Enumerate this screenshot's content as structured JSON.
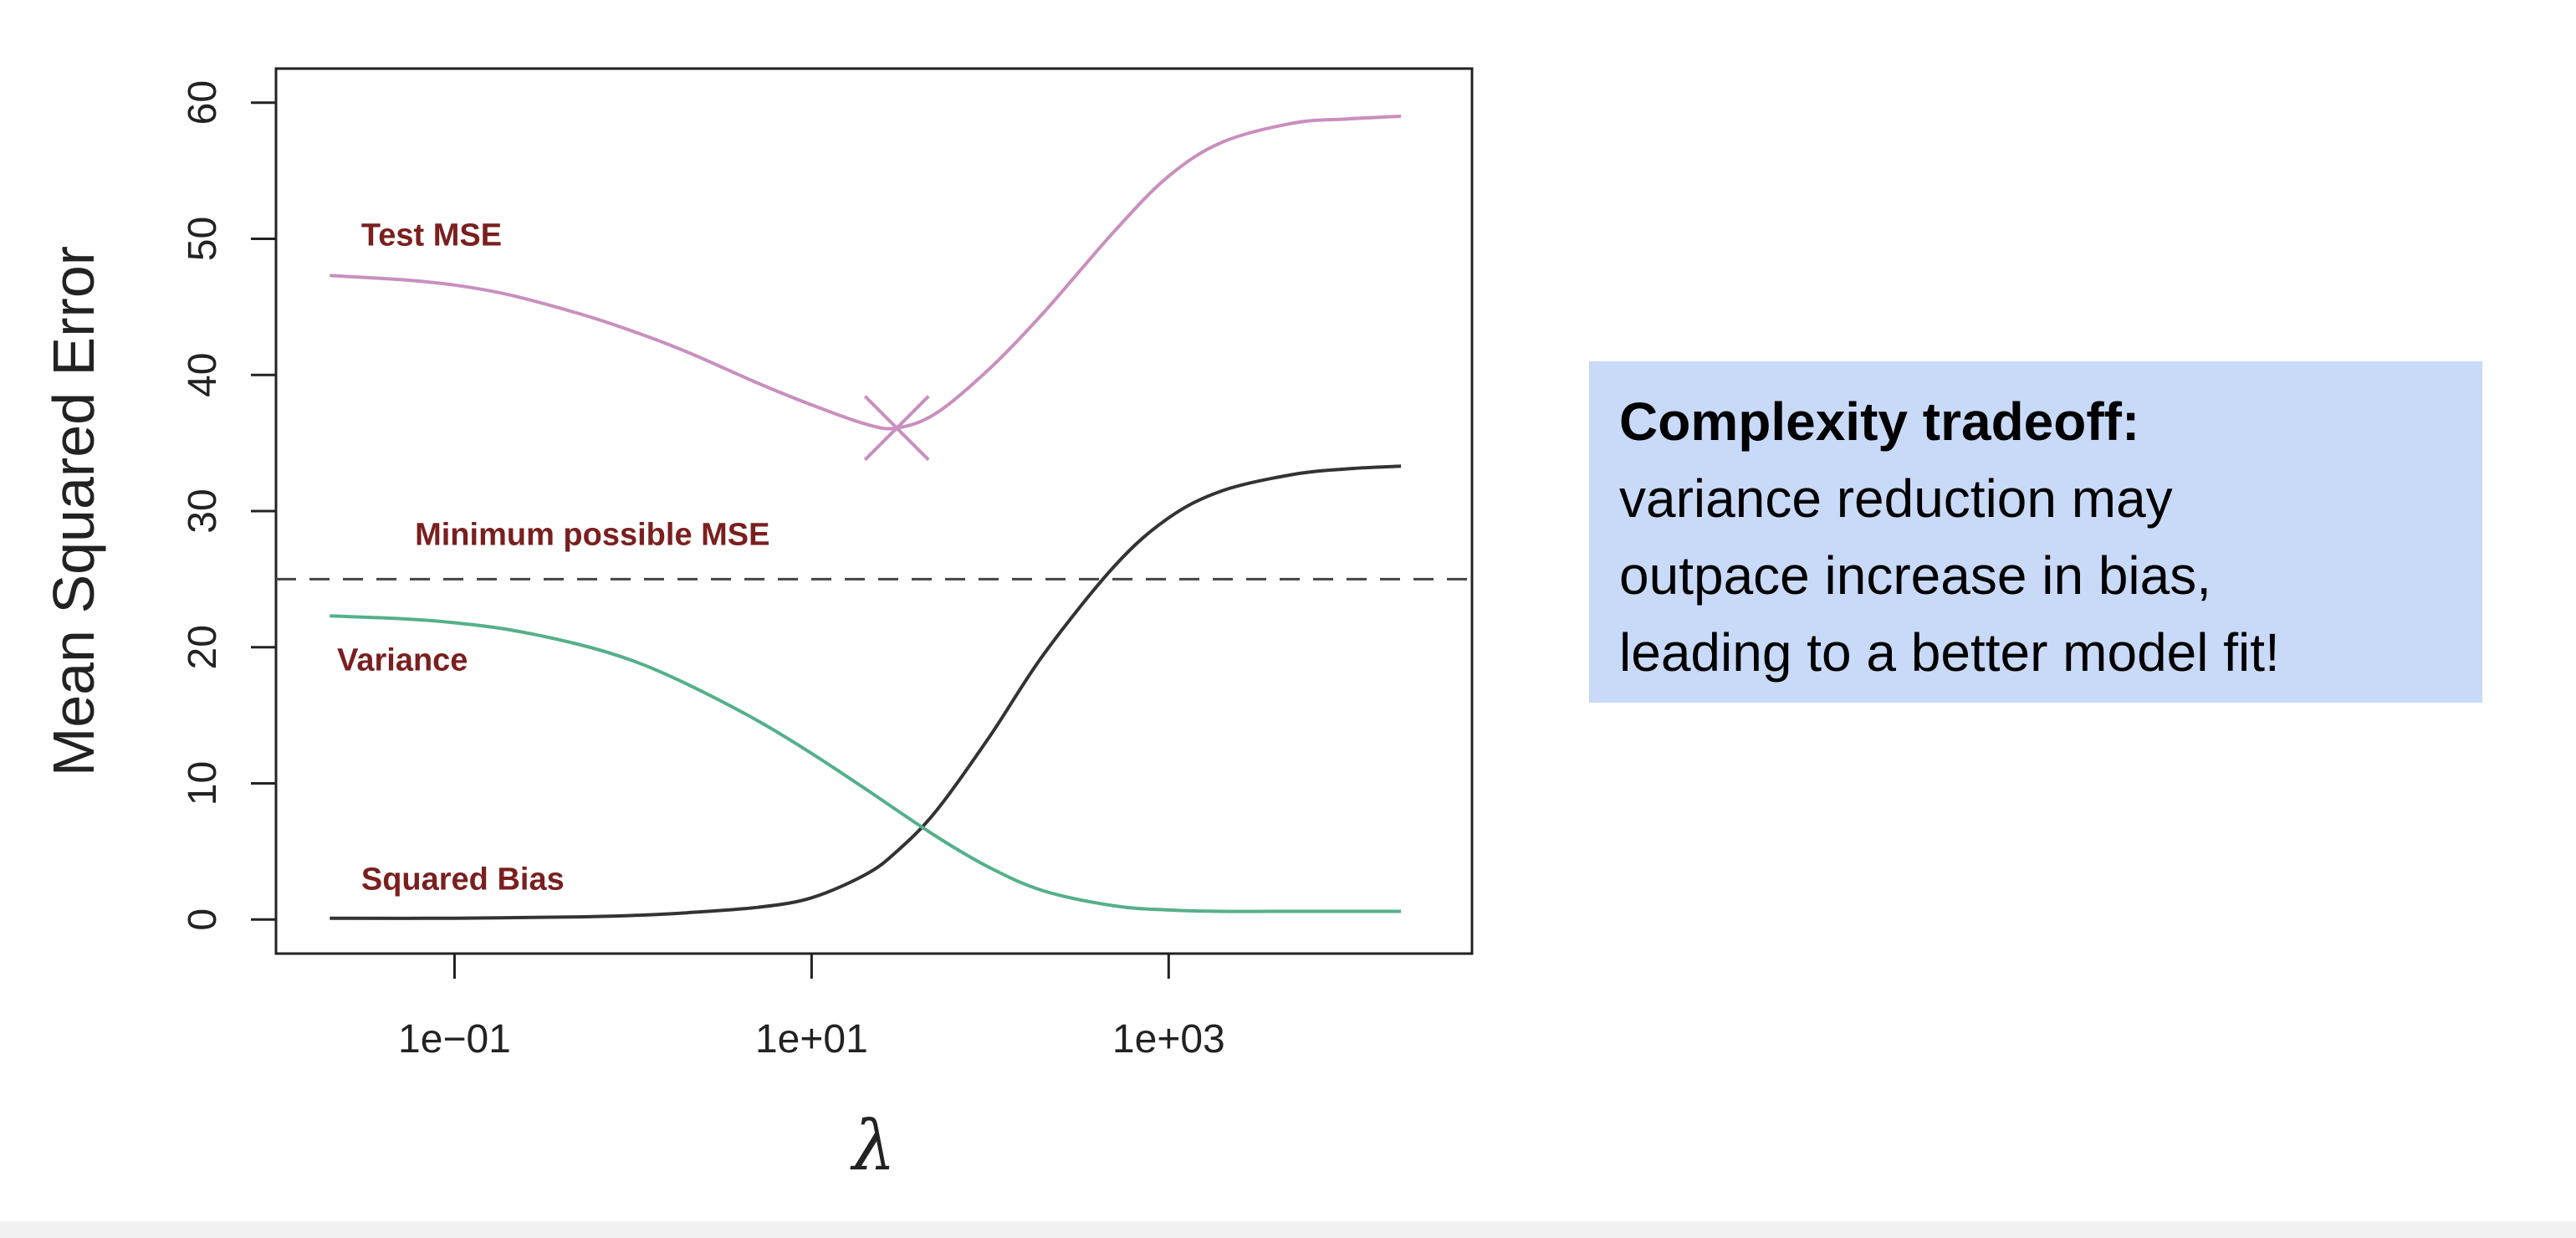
{
  "chart_data": {
    "type": "line",
    "title": "",
    "xlabel": "λ",
    "ylabel": "Mean Squared Error",
    "x_scale": "log",
    "xlim": [
      0.01,
      50000
    ],
    "ylim": [
      -2.5,
      62.5
    ],
    "x_ticks": [
      0.1,
      10,
      1000
    ],
    "x_tick_labels": [
      "1e−01",
      "1e+01",
      "1e+03"
    ],
    "y_ticks": [
      0,
      10,
      20,
      30,
      40,
      50,
      60
    ],
    "y_tick_labels": [
      "0",
      "10",
      "20",
      "30",
      "40",
      "50",
      "60"
    ],
    "grid": false,
    "legend": "none",
    "series": [
      {
        "name": "Test MSE",
        "color": "#c98fbf",
        "x": [
          0.02,
          0.05,
          0.1,
          0.2,
          0.5,
          1,
          2,
          5,
          10,
          20,
          30,
          50,
          100,
          200,
          500,
          1000,
          2000,
          5000,
          10000,
          20000
        ],
        "y": [
          47.3,
          47.0,
          46.6,
          45.9,
          44.5,
          43.2,
          41.7,
          39.4,
          37.8,
          36.4,
          36.1,
          37.2,
          40.5,
          44.6,
          50.6,
          54.6,
          57.1,
          58.5,
          58.8,
          59.0
        ]
      },
      {
        "name": "Squared Bias",
        "color": "#333333",
        "x": [
          0.02,
          0.1,
          0.5,
          1,
          2,
          5,
          10,
          20,
          30,
          50,
          100,
          200,
          500,
          1000,
          2000,
          5000,
          10000,
          20000
        ],
        "y": [
          0.1,
          0.1,
          0.2,
          0.3,
          0.5,
          0.9,
          1.6,
          3.3,
          5.0,
          8.0,
          13.5,
          19.5,
          26.0,
          29.5,
          31.5,
          32.7,
          33.1,
          33.3
        ]
      },
      {
        "name": "Variance",
        "color": "#55b08b",
        "x": [
          0.02,
          0.05,
          0.1,
          0.2,
          0.5,
          1,
          2,
          5,
          10,
          20,
          50,
          100,
          200,
          500,
          1000,
          2000,
          5000,
          10000,
          20000
        ],
        "y": [
          22.3,
          22.1,
          21.8,
          21.3,
          20.2,
          19.0,
          17.3,
          14.6,
          12.2,
          9.6,
          6.1,
          3.8,
          2.1,
          1.0,
          0.7,
          0.6,
          0.6,
          0.6,
          0.6
        ]
      }
    ],
    "reference_line": {
      "name": "Minimum possible MSE",
      "y": 25,
      "style": "dashed",
      "color": "#444444"
    },
    "marker": {
      "series": "Test MSE",
      "x": 30,
      "y": 36.1,
      "symbol": "x",
      "color": "#c98fbf"
    },
    "annotations": [
      {
        "text": "Test MSE",
        "x": 0.03,
        "y": 49.5,
        "color": "#7a1f1f"
      },
      {
        "text": "Minimum possible MSE",
        "x": 0.06,
        "y": 27.5,
        "color": "#7a1f1f"
      },
      {
        "text": "Variance",
        "x": 0.022,
        "y": 18.3,
        "color": "#7a1f1f"
      },
      {
        "text": "Squared Bias",
        "x": 0.03,
        "y": 2.2,
        "color": "#7a1f1f"
      }
    ]
  },
  "callout": {
    "title": "Complexity tradeoff:",
    "lines": [
      "variance reduction may",
      "outpace increase in bias,",
      "leading to a better model fit!"
    ]
  }
}
